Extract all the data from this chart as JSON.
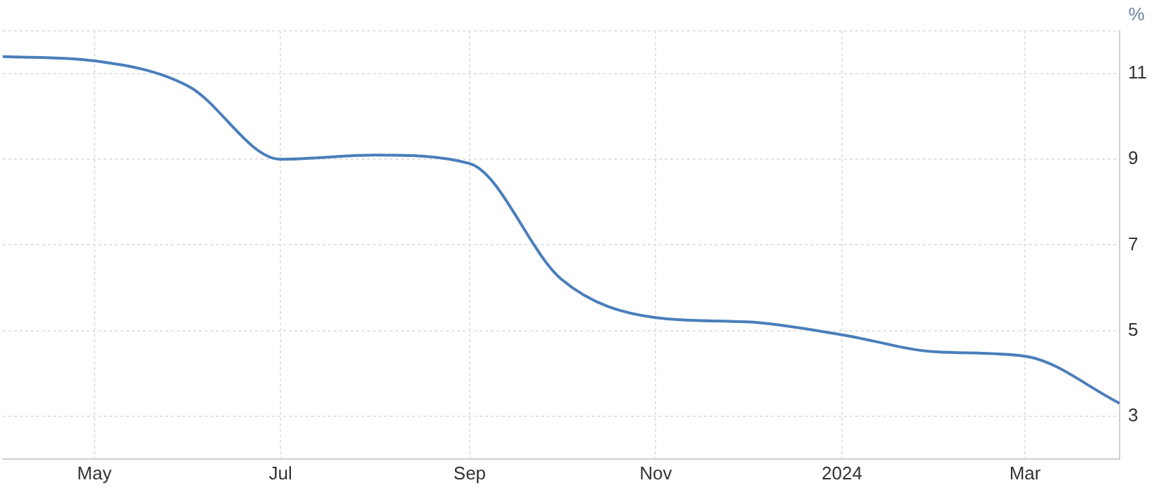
{
  "chart_data": {
    "type": "line",
    "ylabel": "%",
    "x": [
      "2023-04-01",
      "2023-05-01",
      "2023-06-01",
      "2023-07-01",
      "2023-08-01",
      "2023-09-01",
      "2023-10-01",
      "2023-11-01",
      "2023-12-01",
      "2024-01-01",
      "2024-02-01",
      "2024-03-01",
      "2024-04-01"
    ],
    "series": [
      {
        "color": "#4a7ebb",
        "values": [
          11.4,
          11.3,
          10.7,
          9.0,
          9.1,
          8.9,
          6.2,
          5.3,
          5.2,
          4.9,
          4.5,
          4.4,
          3.3
        ]
      }
    ],
    "xlim": [
      "2023-04-01",
      "2024-04-01"
    ],
    "xticks": [
      {
        "value": "2023-05-01",
        "label": "May"
      },
      {
        "value": "2023-07-01",
        "label": "Jul"
      },
      {
        "value": "2023-09-01",
        "label": "Sep"
      },
      {
        "value": "2023-11-01",
        "label": "Nov"
      },
      {
        "value": "2024-01-01",
        "label": "2024"
      },
      {
        "value": "2024-03-01",
        "label": "Mar"
      }
    ],
    "ylim": [
      2,
      12
    ],
    "yticks": [
      {
        "value": 3,
        "label": "3"
      },
      {
        "value": 5,
        "label": "5"
      },
      {
        "value": 7,
        "label": "7"
      },
      {
        "value": 9,
        "label": "9"
      },
      {
        "value": 11,
        "label": "11"
      },
      {
        "value": 12,
        "label": null
      }
    ],
    "grid": true,
    "legend": false,
    "marker": "none",
    "line_style": "solid"
  }
}
